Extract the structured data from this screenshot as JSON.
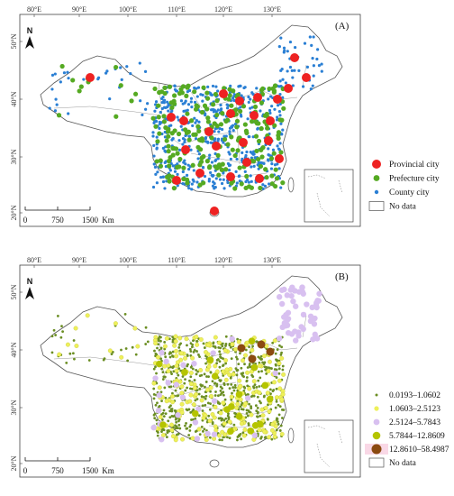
{
  "panels": [
    {
      "label": "(A)",
      "lon_ticks": [
        "80°E",
        "90°E",
        "100°E",
        "110°E",
        "120°E",
        "130°E"
      ],
      "lat_ticks": [
        "50°N",
        "40°N",
        "30°N",
        "20°N"
      ],
      "north_label": "N",
      "scale_labels": [
        "0",
        "750",
        "1500",
        "Km"
      ],
      "legend": [
        {
          "label": "Provincial city",
          "color": "#ee2222",
          "size": "large"
        },
        {
          "label": "Prefecture city",
          "color": "#55aa22",
          "size": "medium"
        },
        {
          "label": "County city",
          "color": "#2a7fd4",
          "size": "small"
        },
        {
          "label": "No data",
          "color": "#ffffff",
          "size": "box"
        }
      ]
    },
    {
      "label": "(B)",
      "lon_ticks": [
        "80°E",
        "90°E",
        "100°E",
        "110°E",
        "120°E",
        "130°E"
      ],
      "lat_ticks": [
        "50°N",
        "40°N",
        "30°N",
        "20°N"
      ],
      "north_label": "N",
      "scale_labels": [
        "0",
        "750",
        "1500",
        "Km"
      ],
      "legend": [
        {
          "label": "0.0193–1.0602",
          "color": "#6b8e23",
          "size": "tiny"
        },
        {
          "label": "1.0603–2.5123",
          "color": "#eef05a",
          "size": "small"
        },
        {
          "label": "2.5124–5.7843",
          "color": "#d8c0f0",
          "size": "medium"
        },
        {
          "label": "5.7844–12.8609",
          "color": "#b5c400",
          "size": "large"
        },
        {
          "label": "12.8610–58.4987",
          "color": "#8b4a10",
          "size": "xlarge"
        },
        {
          "label": "No data",
          "color": "#ffffff",
          "size": "box"
        }
      ]
    }
  ]
}
